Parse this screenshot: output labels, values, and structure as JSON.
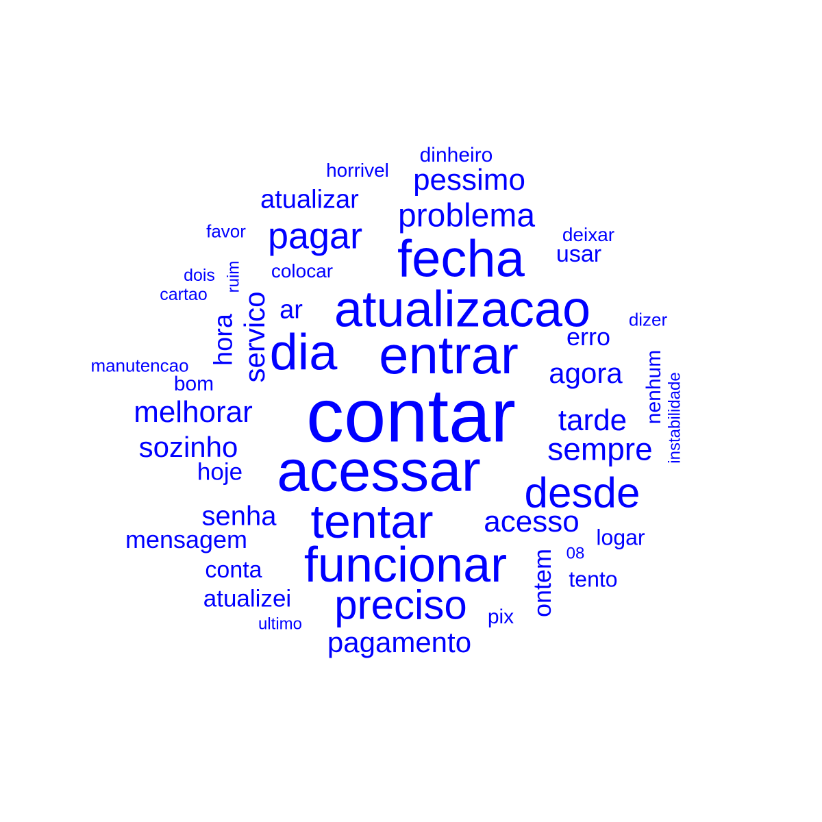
{
  "wordcloud": {
    "color": "#0000ff",
    "background": "#ffffff",
    "words": [
      {
        "text": "contar",
        "rotated": false
      },
      {
        "text": "acessar",
        "rotated": false
      },
      {
        "text": "entrar",
        "rotated": false
      },
      {
        "text": "atualizacao",
        "rotated": false
      },
      {
        "text": "funcionar",
        "rotated": false
      },
      {
        "text": "fecha",
        "rotated": false
      },
      {
        "text": "tentar",
        "rotated": false
      },
      {
        "text": "dia",
        "rotated": false
      },
      {
        "text": "desde",
        "rotated": false
      },
      {
        "text": "preciso",
        "rotated": false
      },
      {
        "text": "pagar",
        "rotated": false
      },
      {
        "text": "problema",
        "rotated": false
      },
      {
        "text": "pessimo",
        "rotated": false
      },
      {
        "text": "sempre",
        "rotated": false
      },
      {
        "text": "acesso",
        "rotated": false
      },
      {
        "text": "pagamento",
        "rotated": false
      },
      {
        "text": "tarde",
        "rotated": false
      },
      {
        "text": "agora",
        "rotated": false
      },
      {
        "text": "melhorar",
        "rotated": false
      },
      {
        "text": "sozinho",
        "rotated": false
      },
      {
        "text": "senha",
        "rotated": false
      },
      {
        "text": "servico",
        "rotated": true
      },
      {
        "text": "hora",
        "rotated": true
      },
      {
        "text": "ontem",
        "rotated": true
      },
      {
        "text": "atualizar",
        "rotated": false
      },
      {
        "text": "erro",
        "rotated": false
      },
      {
        "text": "mensagem",
        "rotated": false
      },
      {
        "text": "atualizei",
        "rotated": false
      },
      {
        "text": "ar",
        "rotated": false
      },
      {
        "text": "usar",
        "rotated": false
      },
      {
        "text": "conta",
        "rotated": false
      },
      {
        "text": "hoje",
        "rotated": false
      },
      {
        "text": "tento",
        "rotated": false
      },
      {
        "text": "nenhum",
        "rotated": true
      },
      {
        "text": "logar",
        "rotated": false
      },
      {
        "text": "dinheiro",
        "rotated": false
      },
      {
        "text": "bom",
        "rotated": false
      },
      {
        "text": "colocar",
        "rotated": false
      },
      {
        "text": "horrivel",
        "rotated": false
      },
      {
        "text": "pix",
        "rotated": false
      },
      {
        "text": "deixar",
        "rotated": false
      },
      {
        "text": "dizer",
        "rotated": false
      },
      {
        "text": "favor",
        "rotated": false
      },
      {
        "text": "instabilidade",
        "rotated": true
      },
      {
        "text": "ruim",
        "rotated": true
      },
      {
        "text": "dois",
        "rotated": false
      },
      {
        "text": "cartao",
        "rotated": false
      },
      {
        "text": "manutencao",
        "rotated": false
      },
      {
        "text": "ultimo",
        "rotated": false
      },
      {
        "text": "08",
        "rotated": false
      }
    ]
  }
}
